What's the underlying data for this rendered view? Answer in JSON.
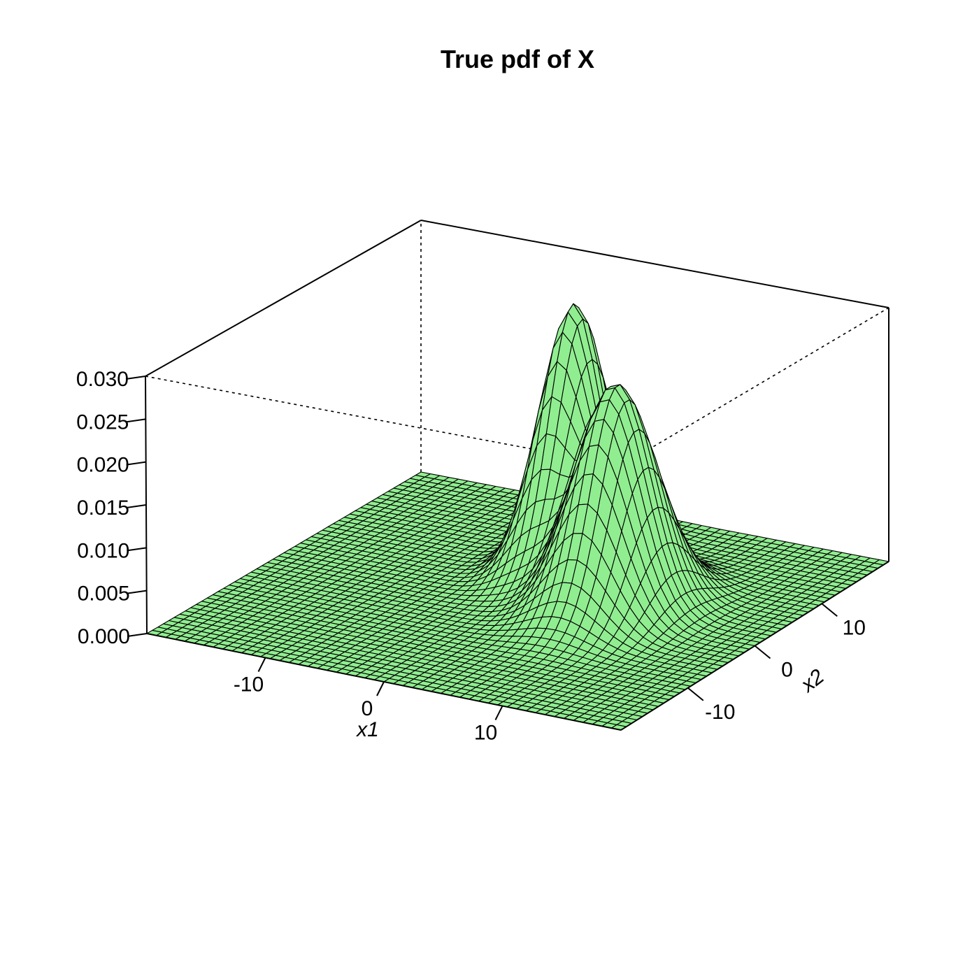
{
  "chart_data": {
    "type": "surface",
    "title": "True pdf of X",
    "xlabel": "x1",
    "ylabel": "x2",
    "zlabel": "",
    "xlim": [
      -20,
      20
    ],
    "ylim": [
      -20,
      20
    ],
    "zlim": [
      0,
      0.03
    ],
    "x_ticks": [
      {
        "value": -10,
        "label": "-10"
      },
      {
        "value": 0,
        "label": "0"
      },
      {
        "value": 10,
        "label": "10"
      }
    ],
    "y_ticks": [
      {
        "value": -10,
        "label": "-10"
      },
      {
        "value": 0,
        "label": "0"
      },
      {
        "value": 10,
        "label": "10"
      }
    ],
    "z_ticks": [
      {
        "value": 0.0,
        "label": "0.000"
      },
      {
        "value": 0.005,
        "label": "0.005"
      },
      {
        "value": 0.01,
        "label": "0.010"
      },
      {
        "value": 0.015,
        "label": "0.015"
      },
      {
        "value": 0.02,
        "label": "0.020"
      },
      {
        "value": 0.025,
        "label": "0.025"
      },
      {
        "value": 0.03,
        "label": "0.030"
      }
    ],
    "grid_size": 51,
    "peaks": [
      {
        "x1": 0,
        "x2": 8,
        "height": 0.0305
      },
      {
        "x1": 7,
        "x2": 2,
        "height": 0.026
      }
    ],
    "surface_color": "#90ee90",
    "mesh_color": "#000000",
    "grid": false,
    "legend": "none"
  }
}
